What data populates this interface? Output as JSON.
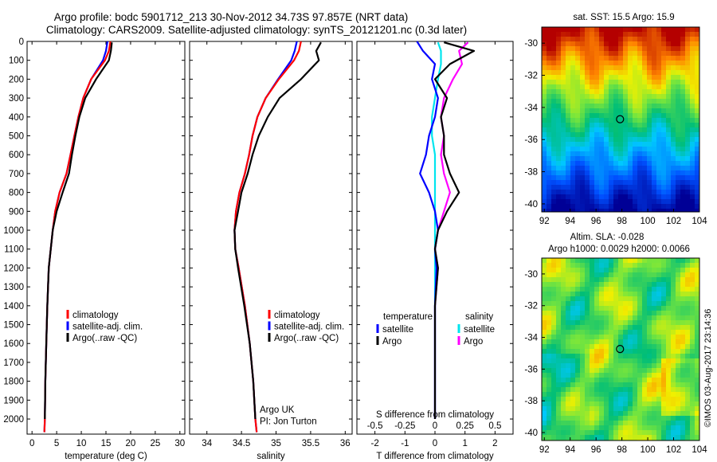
{
  "header": {
    "line1": "Argo profile: bodc 5901712_213 30-Nov-2012 34.73S 97.857E (NRT data)",
    "line2": "Climatology: CARS2009. Satellite-adjusted climatology: synTS_20121201.nc (0.3d later)"
  },
  "side_stamp": "©IMOS 03-Aug-2017 23:14:36",
  "chart_data": [
    {
      "type": "line",
      "panel": "temperature",
      "xlabel": "temperature (deg C)",
      "ylabel": "",
      "xlim": [
        -1,
        31
      ],
      "ylim": [
        2080,
        0
      ],
      "xticks": [
        "0",
        "5",
        "10",
        "15",
        "20",
        "25",
        "30"
      ],
      "yticks": [
        "0",
        "100",
        "200",
        "300",
        "400",
        "500",
        "600",
        "700",
        "800",
        "900",
        "1000",
        "1100",
        "1200",
        "1300",
        "1400",
        "1500",
        "1600",
        "1700",
        "1800",
        "1900",
        "2000"
      ],
      "legend": [
        "climatology",
        "satellite-adj. clim.",
        "Argo(..raw -QC)"
      ],
      "legend_placement": "bottom-center",
      "series": [
        {
          "name": "climatology",
          "color": "#ff0000",
          "x": [
            15.9,
            15.6,
            14.8,
            12.0,
            10.4,
            9.4,
            8.6,
            7.8,
            7.0,
            5.6,
            4.7,
            4.2,
            3.8,
            3.4,
            3.1,
            2.9,
            2.7,
            2.6,
            2.5
          ],
          "y": [
            0,
            50,
            100,
            200,
            300,
            400,
            500,
            600,
            700,
            800,
            900,
            1000,
            1100,
            1200,
            1400,
            1600,
            1800,
            2000,
            2070
          ]
        },
        {
          "name": "satellite-adj. clim.",
          "color": "#0000ff",
          "x": [
            15.3,
            15.0,
            14.4,
            12.0,
            10.4,
            9.4,
            8.6,
            7.8,
            7.0,
            5.6,
            4.7,
            4.2,
            3.8,
            3.4,
            3.1,
            2.9,
            2.7,
            2.6,
            2.5
          ],
          "y": [
            0,
            50,
            100,
            200,
            300,
            400,
            500,
            600,
            700,
            800,
            900,
            1000,
            1100,
            1200,
            1400,
            1600,
            1800,
            2000,
            2070
          ]
        },
        {
          "name": "Argo(..raw -QC)",
          "color": "#000000",
          "x": [
            16.2,
            16.0,
            15.6,
            13.0,
            10.8,
            9.6,
            8.8,
            8.1,
            7.5,
            6.2,
            5.0,
            4.2,
            3.8,
            3.4,
            3.1,
            2.9,
            2.7,
            2.6
          ],
          "y": [
            5,
            50,
            100,
            200,
            300,
            400,
            500,
            600,
            700,
            800,
            900,
            1000,
            1100,
            1200,
            1400,
            1600,
            1800,
            2000
          ]
        }
      ]
    },
    {
      "type": "line",
      "panel": "salinity",
      "xlabel": "salinity",
      "ylabel": "",
      "xlim": [
        33.75,
        36.1
      ],
      "ylim": [
        2080,
        0
      ],
      "xticks": [
        "34",
        "34.5",
        "35",
        "35.5",
        "36"
      ],
      "legend": [
        "climatology",
        "satellite-adj. clim.",
        "Argo(..raw -QC)"
      ],
      "legend_placement": "bottom-right",
      "annotation": [
        "Argo UK",
        "PI: Jon Turton"
      ],
      "series": [
        {
          "name": "climatology",
          "color": "#ff0000",
          "x": [
            35.36,
            35.33,
            35.26,
            35.04,
            34.85,
            34.73,
            34.66,
            34.61,
            34.55,
            34.47,
            34.42,
            34.4,
            34.41,
            34.46,
            34.55,
            34.62,
            34.67,
            34.7,
            34.72
          ],
          "y": [
            0,
            50,
            100,
            200,
            300,
            400,
            500,
            600,
            700,
            800,
            900,
            1000,
            1100,
            1200,
            1400,
            1600,
            1800,
            2000,
            2070
          ]
        },
        {
          "name": "satellite-adj. clim.",
          "color": "#0000ff",
          "x": [
            35.3,
            35.27,
            35.22,
            35.03,
            34.85,
            34.73,
            34.66,
            34.61,
            34.55,
            34.47,
            34.42,
            34.4,
            34.41,
            34.46,
            34.55,
            34.62,
            34.67,
            34.7,
            34.72
          ],
          "y": [
            0,
            50,
            100,
            200,
            300,
            400,
            500,
            600,
            700,
            800,
            900,
            1000,
            1100,
            1200,
            1400,
            1600,
            1800,
            2000,
            2070
          ]
        },
        {
          "name": "Argo(..raw -QC)",
          "color": "#000000",
          "x": [
            35.65,
            35.58,
            35.62,
            35.36,
            35.05,
            34.88,
            34.75,
            34.66,
            34.59,
            34.5,
            34.45,
            34.4,
            34.41,
            34.45,
            34.54,
            34.62,
            34.67,
            34.7
          ],
          "y": [
            5,
            50,
            100,
            200,
            300,
            400,
            500,
            600,
            700,
            800,
            900,
            1000,
            1100,
            1200,
            1400,
            1600,
            1800,
            2000
          ]
        }
      ]
    },
    {
      "type": "line",
      "panel": "difference",
      "xlabel": "T difference from climatology",
      "xlabel_top": "S difference from climatology",
      "xlim": [
        -2.6,
        2.6
      ],
      "ylim": [
        2080,
        0
      ],
      "xticks": [
        "-2",
        "-1",
        "0",
        "1",
        "2"
      ],
      "xticks_top": [
        "-0.5",
        "-0.25",
        "0",
        "0.25",
        "0.5"
      ],
      "legend_title_left": "temperature",
      "legend_title_right": "salinity",
      "legend": [
        "satellite",
        "Argo",
        "satellite",
        "Argo"
      ],
      "legend_placement": "bottom",
      "series": [
        {
          "name": "satellite",
          "quantity": "temperature",
          "color": "#0000ff",
          "x": [
            -0.6,
            -0.4,
            0,
            -0.1,
            0.1,
            0,
            -0.2,
            -0.3,
            -0.5,
            -0.2,
            0,
            0.1,
            0,
            0.05,
            0,
            0,
            0
          ],
          "y": [
            0,
            50,
            120,
            200,
            300,
            400,
            500,
            600,
            700,
            800,
            900,
            1000,
            1100,
            1200,
            1400,
            1800,
            2000
          ]
        },
        {
          "name": "Argo",
          "quantity": "temperature",
          "color": "#000000",
          "x": [
            0.3,
            1.3,
            0.5,
            0,
            0.4,
            0.2,
            0.3,
            0.3,
            0.5,
            0.8,
            0.4,
            0.1,
            0,
            0.1,
            0,
            0,
            0
          ],
          "y": [
            5,
            50,
            120,
            200,
            300,
            400,
            500,
            600,
            700,
            800,
            900,
            1000,
            1100,
            1200,
            1400,
            1800,
            2000
          ]
        },
        {
          "name": "satellite",
          "quantity": "salinity",
          "color": "#00e5ee",
          "x": [
            0.1,
            0.2,
            0.2,
            0.1,
            0,
            -0.1,
            -0.1,
            0,
            0,
            0,
            0,
            0,
            0,
            0,
            0,
            0,
            0
          ],
          "y": [
            5,
            50,
            120,
            200,
            300,
            400,
            500,
            600,
            700,
            800,
            900,
            1000,
            1100,
            1200,
            1400,
            1800,
            2000
          ]
        },
        {
          "name": "Argo",
          "quantity": "salinity",
          "color": "#ff00ff",
          "x": [
            1.1,
            0.8,
            0.9,
            0.6,
            0.3,
            0.2,
            0.3,
            0.2,
            0.3,
            0.5,
            0.3,
            0.1,
            0,
            0.1,
            0,
            0,
            0
          ],
          "y": [
            5,
            50,
            120,
            200,
            300,
            400,
            500,
            600,
            700,
            800,
            900,
            1000,
            1100,
            1200,
            1400,
            1800,
            2000
          ]
        }
      ]
    },
    {
      "type": "heatmap",
      "panel": "sst_map",
      "title": "sat. SST: 15.5 Argo: 15.9",
      "xlim": [
        91.8,
        104
      ],
      "ylim": [
        -40.5,
        -29
      ],
      "xticks": [
        "92",
        "94",
        "96",
        "98",
        "100",
        "102",
        "104"
      ],
      "yticks": [
        "-30",
        "-32",
        "-34",
        "-36",
        "-38",
        "-40"
      ],
      "float_position": {
        "lon": 97.857,
        "lat": -34.73
      }
    },
    {
      "type": "heatmap",
      "panel": "sla_map",
      "title_line1": "Altim. SLA: -0.028",
      "title_line2": "Argo h1000: 0.0029 h2000: 0.0066",
      "xlim": [
        91.8,
        104
      ],
      "ylim": [
        -40.5,
        -29
      ],
      "xticks": [
        "92",
        "94",
        "96",
        "98",
        "100",
        "102",
        "104"
      ],
      "yticks": [
        "-30",
        "-32",
        "-34",
        "-36",
        "-38",
        "-40"
      ],
      "float_position": {
        "lon": 97.857,
        "lat": -34.73
      }
    }
  ]
}
